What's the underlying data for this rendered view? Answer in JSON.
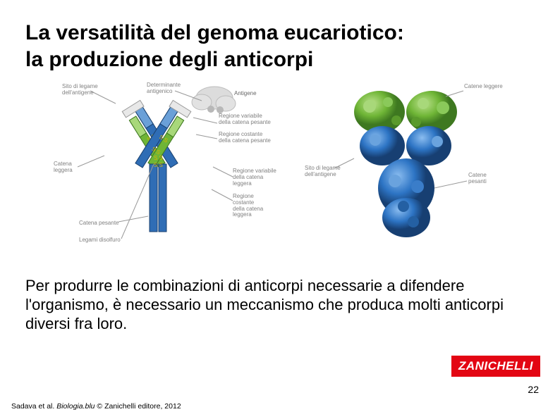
{
  "title_line1": "La versatilità del genoma eucariotico:",
  "title_line2": "la produzione degli anticorpi",
  "body": "Per produrre le combinazioni di anticorpi necessarie a difendere l'organismo, è necessario un meccanismo che produca molti anticorpi diversi fra loro.",
  "badge": "ZANICHELLI",
  "page_number": "22",
  "citation_prefix": "Sadava et al. ",
  "citation_italic": "Biologia.blu",
  "citation_suffix": " © Zanichelli editore, 2012",
  "left_labels": {
    "top_left": "Sito di legame\ndell'antigene",
    "top_right": "Determinante\nantigenico",
    "antigen": "Antigene",
    "var_heavy": "Regione variabile\ndella catena pesante",
    "const_heavy": "Regione costante\ndella catena pesante",
    "light_chain": "Catena\nleggera",
    "var_light": "Regione variabile\ndella catena\nleggera",
    "const_light": "Regione\ncostante\ndella catena\nleggera",
    "heavy_chain": "Catena pesante",
    "disulfide": "Legami disolfuro"
  },
  "right_labels": {
    "light_chains": "Catene leggere",
    "binding_site": "Sito di legame\ndell'antigene",
    "heavy_chains": "Catene\npesanti"
  },
  "colors": {
    "heavy_chain": "#2f6db5",
    "heavy_chain_dark": "#1c4c87",
    "light_chain": "#6fb536",
    "light_chain_dark": "#4a8a22",
    "variable_tip": "#e8e8e8",
    "disulfide": "#f7d63e",
    "antigen_cloud": "#d9d9d9",
    "blob_green": "#7ab83f",
    "blob_green_dark": "#4e8d28",
    "blob_blue": "#2d74c4",
    "blob_blue_dark": "#1a4a8a",
    "badge_bg": "#e30613",
    "label_gray": "#808080"
  }
}
